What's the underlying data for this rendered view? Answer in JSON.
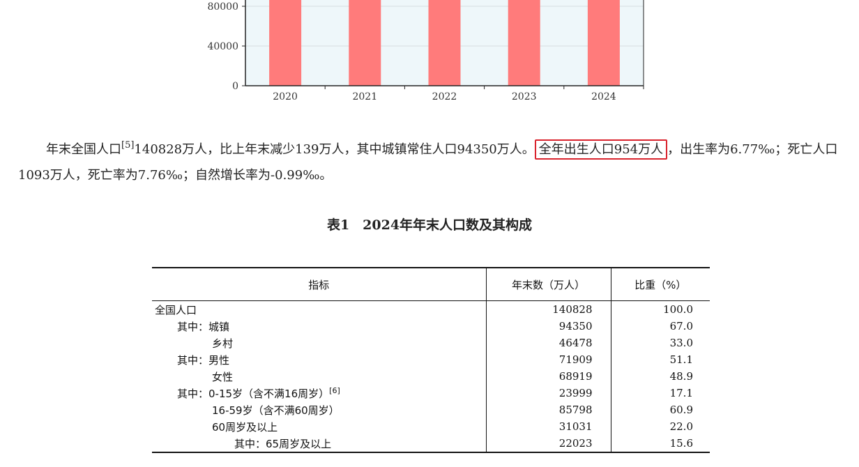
{
  "chart_data": {
    "type": "bar",
    "categories": [
      "2020",
      "2021",
      "2022",
      "2023",
      "2024"
    ],
    "values": [
      141212,
      141260,
      141175,
      140967,
      140828
    ],
    "ylim": [
      0,
      160000
    ],
    "yticks": [
      "0",
      "40000",
      "80000"
    ],
    "grid": true,
    "bar_color": "#ff7b7b",
    "plot_bg": "#eef7fa"
  },
  "paragraph": {
    "before_sup": "年末全国人口",
    "sup": "[5]",
    "middle": "140828万人，比上年末减少139万人，其中城镇常住人口94350万人。",
    "highlight": "全年出生人口954万人",
    "after": "，出生率为6.77‰；死亡人口1093万人，死亡率为7.76‰；自然增长率为-0.99‰。"
  },
  "table": {
    "title": "表1　2024年年末人口数及其构成",
    "headers": [
      "指标",
      "年末数（万人）",
      "比重（%）"
    ],
    "rows": [
      {
        "prefix": "",
        "label": "全国人口",
        "note": "",
        "count": "140828",
        "share": "100.0"
      },
      {
        "prefix": "其中：",
        "label": "城镇",
        "note": "",
        "count": "94350",
        "share": "67.0"
      },
      {
        "prefix": "",
        "label": "乡村",
        "note": "",
        "count": "46478",
        "share": "33.0"
      },
      {
        "prefix": "其中：",
        "label": "男性",
        "note": "",
        "count": "71909",
        "share": "51.1"
      },
      {
        "prefix": "",
        "label": "女性",
        "note": "",
        "count": "68919",
        "share": "48.9"
      },
      {
        "prefix": "其中：",
        "label": "0-15岁（含不满16周岁）",
        "note": "[6]",
        "count": "23999",
        "share": "17.1"
      },
      {
        "prefix": "",
        "label": "16-59岁（含不满60周岁）",
        "note": "",
        "count": "85798",
        "share": "60.9"
      },
      {
        "prefix": "",
        "label": "60周岁及以上",
        "note": "",
        "count": "31031",
        "share": "22.0"
      },
      {
        "prefix": "其中：",
        "label": "65周岁及以上",
        "note": "",
        "count": "22023",
        "share": "15.6"
      }
    ]
  }
}
